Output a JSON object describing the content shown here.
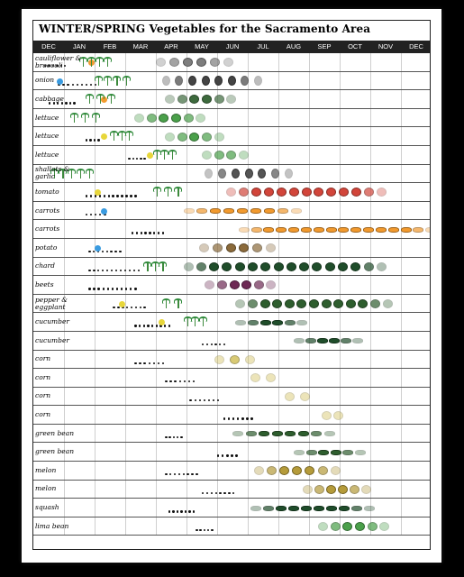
{
  "title": "WINTER/SPRING Vegetables for the Sacramento Area",
  "months": [
    "DEC",
    "JAN",
    "FEB",
    "MAR",
    "APR",
    "MAY",
    "JUN",
    "JUL",
    "AUG",
    "SEP",
    "OCT",
    "NOV",
    "DEC"
  ],
  "colors": {
    "plant_green": "#2f8a3a",
    "dark_green": "#1f4d2a",
    "orange": "#f29a2e",
    "blue": "#3a9be0",
    "yellow": "#e7d63a",
    "red": "#d2453a",
    "purple": "#6e2a55"
  },
  "rows": [
    {
      "label": "cauliflower & broccoli",
      "dots": [
        0.35,
        1.0
      ],
      "seed": {
        "at": 1.8,
        "color": "orange"
      },
      "sprouts": [
        1.5,
        2.3
      ],
      "harvest": {
        "from": 4.0,
        "to": 6.2,
        "color": "#7d7d7d",
        "icon": "cauliflower"
      }
    },
    {
      "label": "onion",
      "dots": [
        0.8,
        2.0
      ],
      "seed": {
        "at": 0.75,
        "color": "blue"
      },
      "sprouts": [
        2.0,
        2.9
      ],
      "harvest": {
        "from": 4.2,
        "to": 7.2,
        "color": "#444",
        "icon": "onion"
      }
    },
    {
      "label": "cabbage",
      "dots": [
        0.5,
        1.3
      ],
      "seed": {
        "at": 2.2,
        "color": "orange"
      },
      "sprouts": [
        1.7,
        2.4
      ],
      "harvest": {
        "from": 4.3,
        "to": 6.3,
        "color": "#3d6a3d",
        "icon": "cabbage"
      }
    },
    {
      "label": "lettuce",
      "dots": [],
      "seed": null,
      "sprouts": [
        1.2,
        1.9
      ],
      "harvest": {
        "from": 3.3,
        "to": 5.3,
        "color": "#4aa04a",
        "icon": "lettuce"
      }
    },
    {
      "label": "lettuce",
      "dots": [
        1.7,
        2.1
      ],
      "seed": {
        "at": 2.2,
        "color": "yellow"
      },
      "sprouts": [
        2.5,
        3.0
      ],
      "harvest": {
        "from": 4.3,
        "to": 5.9,
        "color": "#4aa04a",
        "icon": "lettuce"
      }
    },
    {
      "label": "lettuce",
      "dots": [
        3.1,
        3.6
      ],
      "seed": {
        "at": 3.7,
        "color": "yellow"
      },
      "sprouts": [
        3.9,
        4.4
      ],
      "harvest": {
        "from": 5.5,
        "to": 6.7,
        "color": "#4aa04a",
        "icon": "lettuce"
      }
    },
    {
      "label": "shallots & garlic",
      "dots": [],
      "seed": null,
      "sprouts": [
        0.55,
        1.7
      ],
      "harvest": {
        "from": 5.6,
        "to": 8.2,
        "color": "#555",
        "icon": "garlic"
      }
    },
    {
      "label": "tomato",
      "dots": [
        1.7,
        3.3
      ],
      "seed": {
        "at": 2.0,
        "color": "yellow"
      },
      "sprouts": [
        3.9,
        4.6
      ],
      "harvest": {
        "from": 6.3,
        "to": 11.2,
        "color": "red",
        "icon": "tomato"
      }
    },
    {
      "label": "carrots",
      "dots": [
        1.7,
        2.3
      ],
      "seed": {
        "at": 2.2,
        "color": "blue"
      },
      "sprouts": [],
      "harvest": {
        "from": 4.9,
        "to": 8.4,
        "color": "orange",
        "icon": "carrot"
      }
    },
    {
      "label": "carrots",
      "dots": [
        3.2,
        4.2
      ],
      "seed": null,
      "sprouts": [],
      "harvest": {
        "from": 6.7,
        "to": 12.8,
        "color": "orange",
        "icon": "carrot"
      }
    },
    {
      "label": "potato",
      "dots": [
        1.8,
        2.8
      ],
      "seed": {
        "at": 2.0,
        "color": "blue"
      },
      "sprouts": [],
      "harvest": {
        "from": 5.4,
        "to": 7.6,
        "color": "#8b6a3a",
        "icon": "potato"
      }
    },
    {
      "label": "chard",
      "dots": [
        1.8,
        3.4
      ],
      "seed": null,
      "sprouts": [
        3.6,
        4.1
      ],
      "harvest": {
        "from": 4.9,
        "to": 11.2,
        "color": "dark_green",
        "icon": "chard"
      }
    },
    {
      "label": "beets",
      "dots": [
        1.8,
        3.3
      ],
      "seed": null,
      "sprouts": [],
      "harvest": {
        "from": 5.6,
        "to": 7.6,
        "color": "purple",
        "icon": "beet"
      }
    },
    {
      "label": "pepper & eggplant",
      "dots": [
        2.6,
        3.6
      ],
      "seed": {
        "at": 2.8,
        "color": "yellow"
      },
      "sprouts": [
        4.2,
        4.6
      ],
      "harvest": {
        "from": 6.6,
        "to": 11.4,
        "color": "#2e5e2e",
        "icon": "pepper"
      }
    },
    {
      "label": "cucumber",
      "dots": [
        3.3,
        4.4
      ],
      "seed": {
        "at": 4.1,
        "color": "yellow"
      },
      "sprouts": [
        4.9,
        5.4
      ],
      "harvest": {
        "from": 6.6,
        "to": 8.6,
        "color": "dark_green",
        "icon": "cucumber"
      }
    },
    {
      "label": "cucumber",
      "dots": [
        5.5,
        6.2
      ],
      "seed": null,
      "sprouts": [],
      "harvest": {
        "from": 8.5,
        "to": 10.4,
        "color": "dark_green",
        "icon": "cucumber"
      }
    },
    {
      "label": "corn",
      "dots": [
        3.3,
        4.2
      ],
      "seed": null,
      "sprouts": [],
      "harvest": {
        "from": 5.9,
        "to": 6.9,
        "color": "#c9b53a",
        "icon": "corn"
      }
    },
    {
      "label": "corn",
      "dots": [
        4.3,
        5.2
      ],
      "seed": null,
      "sprouts": [],
      "harvest": {
        "from": 7.1,
        "to": 7.6,
        "color": "#c9b53a",
        "icon": "corn"
      }
    },
    {
      "label": "corn",
      "dots": [
        5.1,
        6.0
      ],
      "seed": null,
      "sprouts": [],
      "harvest": {
        "from": 8.2,
        "to": 8.7,
        "color": "#c9b53a",
        "icon": "corn"
      }
    },
    {
      "label": "corn",
      "dots": [
        6.2,
        7.1
      ],
      "seed": null,
      "sprouts": [],
      "harvest": {
        "from": 9.4,
        "to": 9.8,
        "color": "#c9b53a",
        "icon": "corn"
      }
    },
    {
      "label": "green bean",
      "dots": [
        4.3,
        4.8
      ],
      "seed": null,
      "sprouts": [],
      "harvest": {
        "from": 6.5,
        "to": 9.5,
        "color": "#2e5e2e",
        "icon": "bean"
      }
    },
    {
      "label": "green bean",
      "dots": [
        6.0,
        6.6
      ],
      "seed": null,
      "sprouts": [],
      "harvest": {
        "from": 8.5,
        "to": 10.5,
        "color": "#2e5e2e",
        "icon": "bean"
      }
    },
    {
      "label": "melon",
      "dots": [
        4.3,
        5.3
      ],
      "seed": null,
      "sprouts": [],
      "harvest": {
        "from": 7.2,
        "to": 9.7,
        "color": "#b59b3a",
        "icon": "melon"
      }
    },
    {
      "label": "melon",
      "dots": [
        5.5,
        6.5
      ],
      "seed": null,
      "sprouts": [],
      "harvest": {
        "from": 8.8,
        "to": 10.7,
        "color": "#b59b3a",
        "icon": "melon"
      }
    },
    {
      "label": "squash",
      "dots": [
        4.4,
        5.2
      ],
      "seed": null,
      "sprouts": [],
      "harvest": {
        "from": 7.1,
        "to": 10.8,
        "color": "dark_green",
        "icon": "squash"
      }
    },
    {
      "label": "lima bean",
      "dots": [
        5.3,
        5.8
      ],
      "seed": null,
      "sprouts": [],
      "harvest": {
        "from": 9.3,
        "to": 11.3,
        "color": "#4aa04a",
        "icon": "limabean"
      }
    }
  ]
}
